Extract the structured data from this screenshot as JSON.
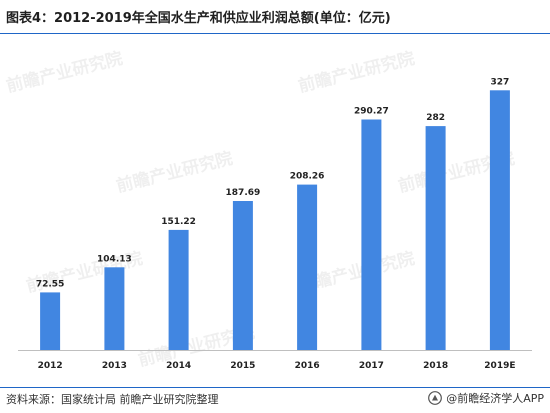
{
  "header": {
    "title": "图表4：2012-2019年全国水生产和供应业利润总额(单位：亿元)"
  },
  "footer": {
    "source": "资料来源：国家统计局 前瞻产业研究院整理",
    "brand": "@前瞻经济学人APP"
  },
  "colors": {
    "bar": "#4186e1",
    "rule": "#1f66c7"
  },
  "watermark": {
    "text": "前瞻产业研究院"
  },
  "chart_data": {
    "type": "bar",
    "title": "图表4：2012-2019年全国水生产和供应业利润总额(单位：亿元)",
    "categories": [
      "2012",
      "2013",
      "2014",
      "2015",
      "2016",
      "2017",
      "2018",
      "2019E"
    ],
    "values": [
      72.55,
      104.13,
      151.22,
      187.69,
      208.26,
      290.27,
      282,
      327
    ],
    "value_labels": [
      "72.55",
      "104.13",
      "151.22",
      "187.69",
      "208.26",
      "290.27",
      "282",
      "327"
    ],
    "xlabel": "",
    "ylabel": "",
    "ylim": [
      0,
      340
    ],
    "grid": false,
    "legend": "none",
    "data_labels": true
  }
}
